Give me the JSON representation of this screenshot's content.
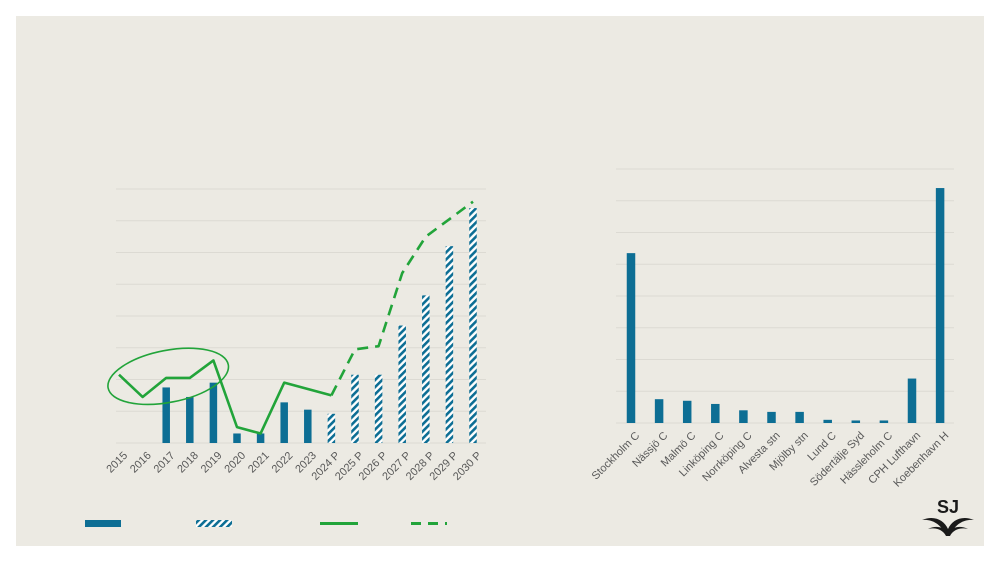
{
  "colors": {
    "background": "#eceae3",
    "bar": "#0d6e94",
    "line": "#22a43a",
    "grid": "#dcdad3",
    "tick_text": "#595959"
  },
  "logo": {
    "text": "SJ",
    "icon": "sj-logo-icon"
  },
  "legend": {
    "items": [
      {
        "kind": "solid-bar"
      },
      {
        "kind": "hatched-bar"
      },
      {
        "kind": "solid-line"
      },
      {
        "kind": "dashed-line"
      }
    ]
  },
  "chart_data": [
    {
      "type": "bar",
      "title": "",
      "xlabel": "",
      "ylabel": "",
      "ylim": [
        0,
        8
      ],
      "grid": true,
      "legend": "bottom",
      "categories": [
        "2015",
        "2016",
        "2017",
        "2018",
        "2019",
        "2020",
        "2021",
        "2022",
        "2023",
        "2024 P",
        "2025 P",
        "2026 P",
        "2027 P",
        "2028 P",
        "2029 P",
        "2030 P"
      ],
      "series": [
        {
          "style": "solid-bar",
          "values": [
            null,
            null,
            1.75,
            1.45,
            1.9,
            0.3,
            0.3,
            1.28,
            1.05,
            null,
            null,
            null,
            null,
            null,
            null,
            null
          ]
        },
        {
          "style": "hatched-bar",
          "values": [
            null,
            null,
            null,
            null,
            null,
            null,
            null,
            null,
            null,
            0.92,
            2.15,
            2.15,
            3.7,
            4.65,
            6.2,
            7.4
          ]
        },
        {
          "style": "solid-line",
          "values": [
            2.15,
            1.45,
            2.05,
            2.05,
            2.6,
            0.5,
            0.3,
            1.9,
            1.7,
            1.5,
            null,
            null,
            null,
            null,
            null,
            null
          ]
        },
        {
          "style": "dashed-line",
          "values": [
            null,
            null,
            null,
            null,
            null,
            null,
            null,
            null,
            null,
            1.5,
            2.95,
            3.05,
            5.35,
            6.5,
            7.05,
            7.6
          ]
        }
      ],
      "annotations": [
        {
          "type": "ellipse",
          "around": [
            "2015",
            "2019"
          ]
        }
      ]
    },
    {
      "type": "bar",
      "title": "",
      "xlabel": "",
      "ylabel": "",
      "ylim": [
        0,
        8
      ],
      "grid": true,
      "categories": [
        "Stockholm C",
        "Nässjö C",
        "Malmö C",
        "Linköping C",
        "Norrköping C",
        "Alvesta stn",
        "Mjölby stn",
        "Lund C",
        "Södertälje Syd",
        "Hässleholm C",
        "CPH Lufthavn",
        "Koebenhavn H"
      ],
      "values": [
        5.35,
        0.75,
        0.7,
        0.6,
        0.4,
        0.35,
        0.35,
        0.1,
        0.08,
        0.08,
        1.4,
        7.4
      ]
    }
  ]
}
